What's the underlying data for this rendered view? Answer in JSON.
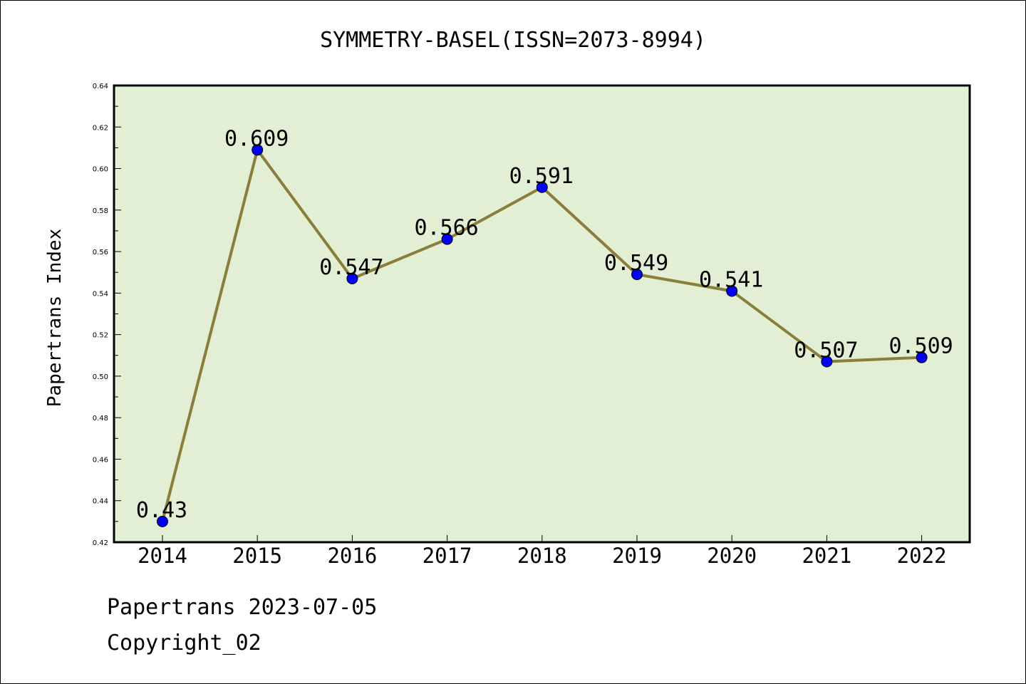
{
  "chart_data": {
    "type": "line",
    "title": "SYMMETRY-BASEL(ISSN=2073-8994)",
    "ylabel": "Papertrans Index",
    "xlabel": "",
    "categories": [
      "2014",
      "2015",
      "2016",
      "2017",
      "2018",
      "2019",
      "2020",
      "2021",
      "2022"
    ],
    "values": [
      0.43,
      0.609,
      0.547,
      0.566,
      0.591,
      0.549,
      0.541,
      0.507,
      0.509
    ],
    "data_labels": [
      "0.43",
      "0.609",
      "0.547",
      "0.566",
      "0.591",
      "0.549",
      "0.541",
      "0.507",
      "0.509"
    ],
    "ylim": [
      0.42,
      0.64
    ],
    "y_ticks": [
      0.42,
      0.44,
      0.46,
      0.48,
      0.5,
      0.52,
      0.54,
      0.56,
      0.58,
      0.6,
      0.62,
      0.64
    ],
    "y_tick_labels": [
      "0.42",
      "0.44",
      "0.46",
      "0.48",
      "0.50",
      "0.52",
      "0.54",
      "0.56",
      "0.58",
      "0.60",
      "0.62",
      "0.64"
    ],
    "grid": false,
    "legend": "none",
    "colors": {
      "plot_background": "#e2efd5",
      "line": "#8b7d3a",
      "marker": "#0000ff"
    }
  },
  "footer": {
    "line1": "Papertrans 2023-07-05",
    "line2": "Copyright_02"
  }
}
